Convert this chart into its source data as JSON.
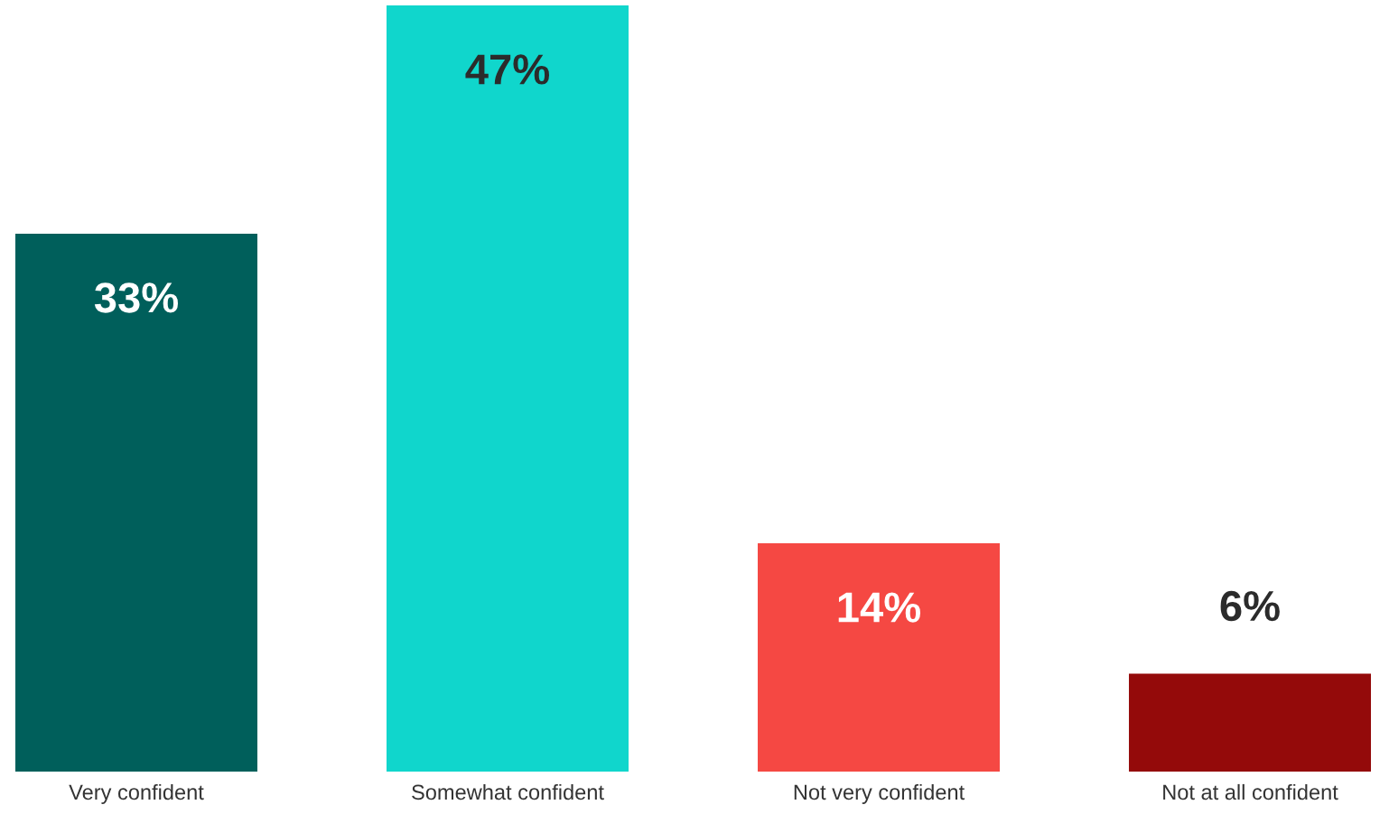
{
  "chart_data": {
    "type": "bar",
    "categories": [
      "Very confident",
      "Somewhat confident",
      "Not very confident",
      "Not at all confident"
    ],
    "values": [
      33,
      47,
      14,
      6
    ],
    "value_labels": [
      "33%",
      "47%",
      "14%",
      "6%"
    ],
    "colors": [
      "#005f5b",
      "#10d6cc",
      "#f54843",
      "#940a0a"
    ],
    "tick_labels": "x",
    "grid": false
  }
}
